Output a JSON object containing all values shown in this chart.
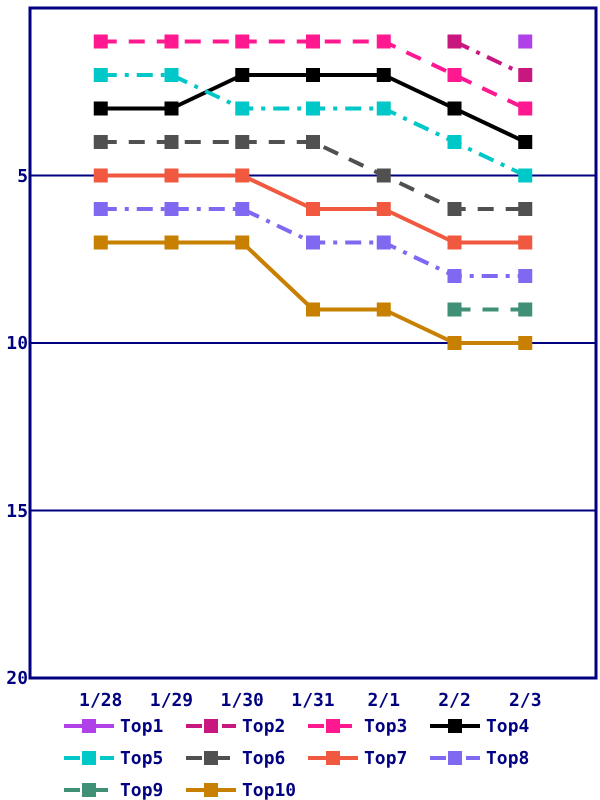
{
  "chart_data": {
    "type": "line",
    "categories": [
      "1/28",
      "1/29",
      "1/30",
      "1/31",
      "2/1",
      "2/2",
      "2/3"
    ],
    "ylim": [
      20,
      0
    ],
    "yticks": [
      {
        "value": 0,
        "label": null
      },
      5,
      10,
      15,
      20
    ],
    "grid": "y",
    "legend": "bottom",
    "marker": "square",
    "series": [
      {
        "name": "Top1",
        "color": "#b040e8",
        "line_style": "solid",
        "values": [
          null,
          null,
          null,
          null,
          null,
          null,
          1
        ]
      },
      {
        "name": "Top2",
        "color": "#c81880",
        "line_style": "dashdot",
        "values": [
          null,
          null,
          null,
          null,
          null,
          1,
          2
        ]
      },
      {
        "name": "Top3",
        "color": "#ff1890",
        "line_style": "dashed",
        "values": [
          1,
          1,
          1,
          1,
          1,
          2,
          3
        ]
      },
      {
        "name": "Top4",
        "color": "#000000",
        "line_style": "solid",
        "values": [
          3,
          3,
          2,
          2,
          2,
          3,
          4
        ]
      },
      {
        "name": "Top5",
        "color": "#00c8c8",
        "line_style": "dashdot",
        "values": [
          2,
          2,
          3,
          3,
          3,
          4,
          5
        ]
      },
      {
        "name": "Top6",
        "color": "#505050",
        "line_style": "dashed",
        "values": [
          4,
          4,
          4,
          4,
          5,
          6,
          6
        ]
      },
      {
        "name": "Top7",
        "color": "#f05840",
        "line_style": "solid",
        "values": [
          5,
          5,
          5,
          6,
          6,
          7,
          7
        ]
      },
      {
        "name": "Top8",
        "color": "#8068f0",
        "line_style": "dashdot",
        "values": [
          6,
          6,
          6,
          7,
          7,
          8,
          8
        ]
      },
      {
        "name": "Top9",
        "color": "#409078",
        "line_style": "dashed",
        "values": [
          null,
          null,
          null,
          null,
          null,
          9,
          9
        ]
      },
      {
        "name": "Top10",
        "color": "#c88000",
        "line_style": "solid",
        "values": [
          7,
          7,
          7,
          9,
          9,
          10,
          10
        ]
      }
    ]
  }
}
